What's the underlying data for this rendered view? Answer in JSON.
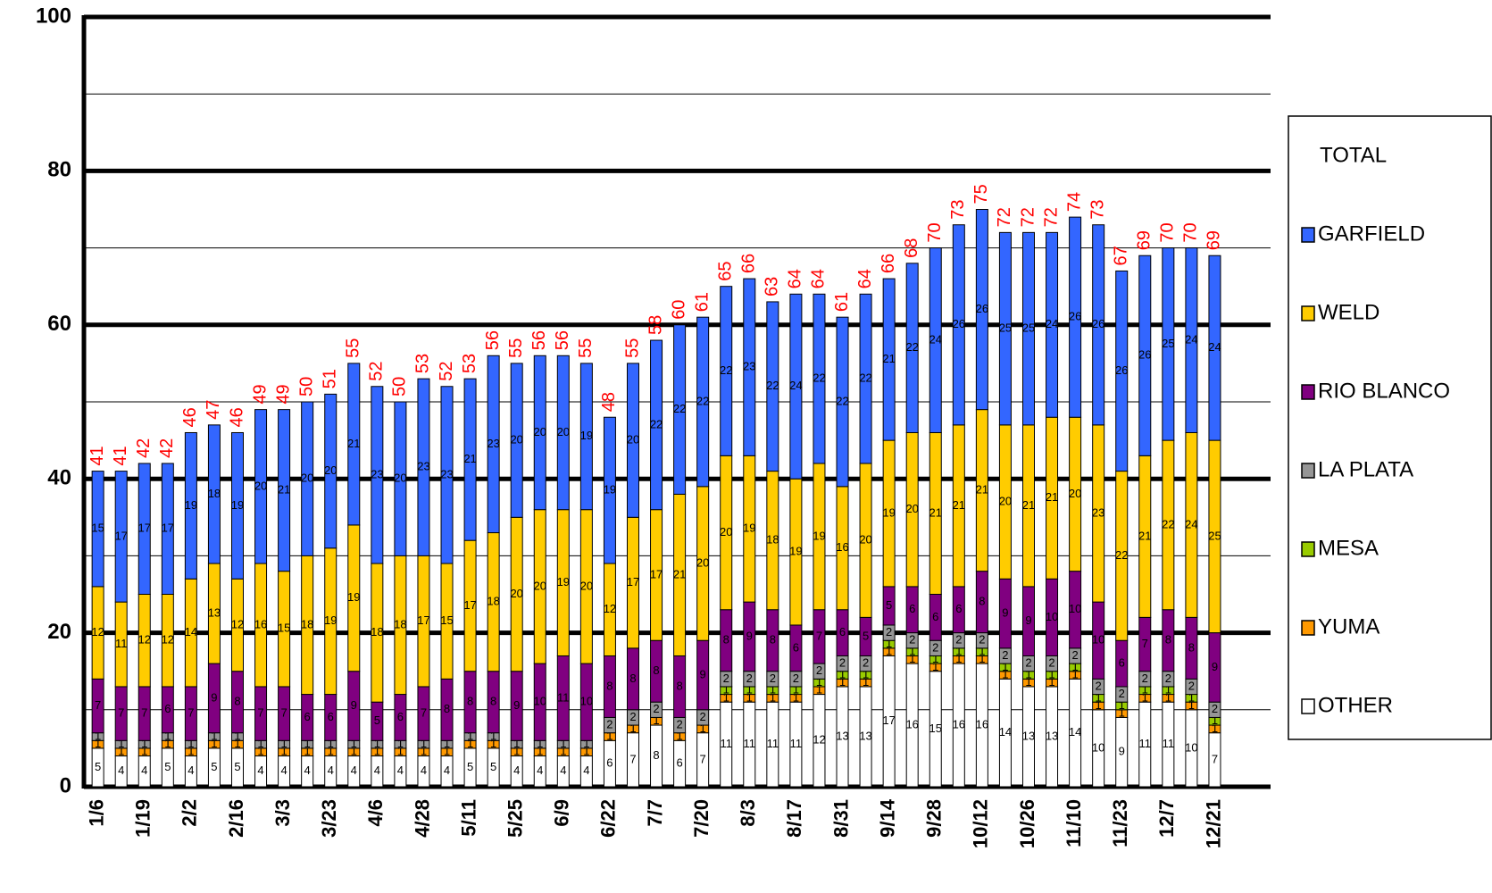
{
  "chart_data": {
    "type": "stacked_bar",
    "categories": [
      "1/6",
      null,
      "1/19",
      null,
      "2/2",
      null,
      "2/16",
      null,
      "3/3",
      null,
      "3/23",
      null,
      "4/6",
      null,
      "4/28",
      null,
      "5/11",
      null,
      "5/25",
      null,
      "6/9",
      null,
      "6/22",
      null,
      "7/7",
      null,
      "7/20",
      null,
      "8/3",
      null,
      "8/17",
      null,
      "8/31",
      null,
      "9/14",
      null,
      "9/28",
      null,
      "10/12",
      null,
      "10/26",
      null,
      "11/10",
      null,
      "11/23",
      null,
      "12/7",
      null,
      "12/21"
    ],
    "series": [
      {
        "name": "OTHER",
        "color": "#ffffff",
        "values": [
          5,
          4,
          4,
          5,
          4,
          5,
          5,
          4,
          4,
          4,
          4,
          4,
          4,
          4,
          4,
          4,
          5,
          5,
          4,
          4,
          4,
          4,
          6,
          7,
          8,
          6,
          7,
          11,
          11,
          11,
          11,
          12,
          13,
          13,
          17,
          16,
          15,
          16,
          16,
          14,
          13,
          13,
          14,
          10,
          9,
          11,
          11,
          10,
          7
        ]
      },
      {
        "name": "YUMA",
        "color": "#ff9900",
        "values": [
          1,
          1,
          1,
          1,
          1,
          1,
          1,
          1,
          1,
          1,
          1,
          1,
          1,
          1,
          1,
          1,
          1,
          1,
          1,
          1,
          1,
          1,
          1,
          1,
          1,
          1,
          1,
          1,
          1,
          1,
          1,
          1,
          1,
          1,
          1,
          1,
          1,
          1,
          1,
          1,
          1,
          1,
          1,
          1,
          1,
          1,
          1,
          1,
          1
        ]
      },
      {
        "name": "MESA",
        "color": "#99cc00",
        "values": [
          0,
          0,
          0,
          0,
          0,
          0,
          0,
          0,
          0,
          0,
          0,
          0,
          0,
          0,
          0,
          0,
          0,
          0,
          0,
          0,
          0,
          0,
          0,
          0,
          0,
          0,
          0,
          1,
          1,
          1,
          1,
          1,
          1,
          1,
          1,
          1,
          1,
          1,
          1,
          1,
          1,
          1,
          1,
          1,
          1,
          1,
          1,
          1,
          1
        ]
      },
      {
        "name": "LA PLATA",
        "color": "#969696",
        "values": [
          1,
          1,
          1,
          1,
          1,
          1,
          1,
          1,
          1,
          1,
          1,
          1,
          1,
          1,
          1,
          1,
          1,
          1,
          1,
          1,
          1,
          1,
          2,
          2,
          2,
          2,
          2,
          2,
          2,
          2,
          2,
          2,
          2,
          2,
          2,
          2,
          2,
          2,
          2,
          2,
          2,
          2,
          2,
          2,
          2,
          2,
          2,
          2,
          2
        ]
      },
      {
        "name": "RIO BLANCO",
        "color": "#800080",
        "values": [
          7,
          7,
          7,
          6,
          7,
          9,
          8,
          7,
          7,
          6,
          6,
          9,
          5,
          6,
          7,
          8,
          8,
          8,
          9,
          10,
          11,
          10,
          8,
          8,
          8,
          8,
          9,
          8,
          9,
          8,
          6,
          7,
          6,
          5,
          5,
          6,
          6,
          6,
          8,
          9,
          9,
          10,
          10,
          10,
          6,
          7,
          8,
          8,
          9
        ]
      },
      {
        "name": "WELD",
        "color": "#ffcc00",
        "values": [
          12,
          11,
          12,
          12,
          14,
          13,
          12,
          16,
          15,
          18,
          19,
          19,
          18,
          18,
          17,
          15,
          17,
          18,
          20,
          20,
          19,
          20,
          12,
          17,
          17,
          21,
          20,
          20,
          19,
          18,
          19,
          19,
          16,
          20,
          19,
          20,
          21,
          21,
          21,
          20,
          21,
          21,
          20,
          23,
          22,
          21,
          22,
          24,
          25
        ]
      },
      {
        "name": "GARFIELD",
        "color": "#3366ff",
        "values": [
          15,
          17,
          17,
          17,
          19,
          18,
          19,
          20,
          21,
          20,
          20,
          21,
          23,
          20,
          23,
          23,
          21,
          23,
          20,
          20,
          20,
          19,
          19,
          20,
          22,
          22,
          22,
          22,
          23,
          22,
          24,
          22,
          22,
          22,
          21,
          22,
          24,
          26,
          26,
          25,
          25,
          24,
          26,
          26,
          26,
          26,
          25,
          24,
          24
        ]
      }
    ],
    "totals": {
      "name": "TOTAL",
      "color": "#ff0000",
      "values": [
        41,
        41,
        42,
        42,
        46,
        47,
        46,
        49,
        49,
        50,
        51,
        55,
        52,
        50,
        53,
        52,
        53,
        56,
        55,
        56,
        56,
        55,
        48,
        55,
        58,
        60,
        61,
        65,
        66,
        63,
        64,
        64,
        61,
        64,
        66,
        68,
        70,
        73,
        75,
        72,
        72,
        72,
        74,
        73,
        67,
        69,
        70,
        70,
        69
      ]
    },
    "ylim": [
      0,
      100
    ],
    "yticks": [
      0,
      20,
      40,
      60,
      80,
      100
    ],
    "minor_yticks": [
      10,
      30,
      50,
      70,
      90
    ],
    "grid": true,
    "legend": "right"
  }
}
